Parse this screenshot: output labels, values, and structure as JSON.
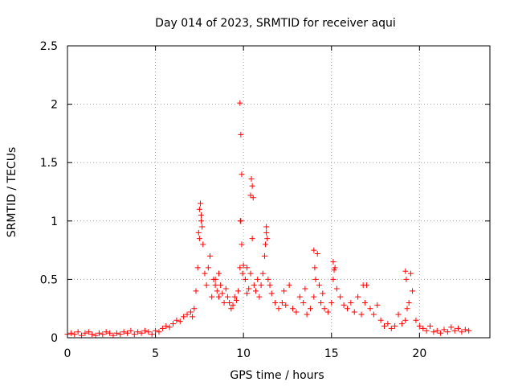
{
  "chart_data": {
    "type": "scatter",
    "title": "Day 014 of 2023, SRMTID for receiver aqui",
    "xlabel": "GPS time / hours",
    "ylabel": "SRMTID / TECUs",
    "xlim": [
      0,
      24
    ],
    "ylim": [
      0,
      2.5
    ],
    "xticks": [
      0,
      5,
      10,
      15,
      20
    ],
    "xtick_labels": [
      "0",
      "5",
      "10",
      "15",
      "20"
    ],
    "yticks": [
      0,
      0.5,
      1,
      1.5,
      2,
      2.5
    ],
    "ytick_labels": [
      "0",
      "0.5",
      "1",
      "1.5",
      "2",
      "2.5"
    ],
    "grid": true,
    "marker": "+",
    "color": "#ff0000",
    "series": [
      {
        "name": "SRMTID",
        "x": [
          0.0,
          0.2,
          0.4,
          0.6,
          0.8,
          1.0,
          1.2,
          1.4,
          1.6,
          1.8,
          2.0,
          2.2,
          2.4,
          2.6,
          2.8,
          3.0,
          3.2,
          3.4,
          3.6,
          3.8,
          4.0,
          4.2,
          4.4,
          4.6,
          4.8,
          5.0,
          5.2,
          5.4,
          5.6,
          5.8,
          6.0,
          6.2,
          6.4,
          6.6,
          6.8,
          7.0,
          7.1,
          7.2,
          7.3,
          7.4,
          7.5,
          7.6,
          7.7,
          7.8,
          7.9,
          8.0,
          8.1,
          8.2,
          8.3,
          8.4,
          8.5,
          8.6,
          8.7,
          8.8,
          8.9,
          9.0,
          9.1,
          9.2,
          9.3,
          9.4,
          9.5,
          9.6,
          9.7,
          9.8,
          9.85,
          9.9,
          9.95,
          10.0,
          10.1,
          10.2,
          10.3,
          10.4,
          10.5,
          10.6,
          10.7,
          10.8,
          10.9,
          11.0,
          11.1,
          11.2,
          11.3,
          11.4,
          11.5,
          11.6,
          11.8,
          12.0,
          12.2,
          12.4,
          12.6,
          12.8,
          13.0,
          13.2,
          13.4,
          13.6,
          13.8,
          14.0,
          14.1,
          14.2,
          14.3,
          14.4,
          14.5,
          14.6,
          14.8,
          15.0,
          15.1,
          15.2,
          15.3,
          15.5,
          15.7,
          15.9,
          16.1,
          16.3,
          16.5,
          16.7,
          16.9,
          17.0,
          17.2,
          17.4,
          17.6,
          17.8,
          18.0,
          18.2,
          18.4,
          18.6,
          18.8,
          19.0,
          19.2,
          19.3,
          19.4,
          19.5,
          19.6,
          19.8,
          20.0,
          20.2,
          20.4,
          20.6,
          20.8,
          21.0,
          21.2,
          21.4,
          21.6,
          21.8,
          22.0,
          22.2,
          22.4,
          22.6,
          22.8,
          7.55,
          7.6,
          7.45,
          7.65,
          7.5,
          9.8,
          9.85,
          9.9,
          9.82,
          10.45,
          10.5,
          10.4,
          10.55,
          11.3,
          11.35,
          11.25,
          14.0,
          14.05,
          15.1,
          15.15,
          19.2,
          19.25,
          16.8,
          8.4,
          8.6,
          10.2,
          12.3,
          13.5
        ],
        "y": [
          0.03,
          0.04,
          0.03,
          0.05,
          0.02,
          0.04,
          0.05,
          0.03,
          0.02,
          0.04,
          0.03,
          0.05,
          0.04,
          0.02,
          0.04,
          0.03,
          0.05,
          0.04,
          0.06,
          0.03,
          0.05,
          0.04,
          0.06,
          0.05,
          0.03,
          0.06,
          0.05,
          0.08,
          0.1,
          0.09,
          0.12,
          0.15,
          0.14,
          0.18,
          0.2,
          0.22,
          0.18,
          0.25,
          0.4,
          0.6,
          0.85,
          1.0,
          0.8,
          0.55,
          0.45,
          0.6,
          0.7,
          0.35,
          0.5,
          0.45,
          0.4,
          0.35,
          0.45,
          0.38,
          0.3,
          0.42,
          0.35,
          0.3,
          0.25,
          0.28,
          0.35,
          0.32,
          0.4,
          0.6,
          1.0,
          0.8,
          0.55,
          0.62,
          0.5,
          0.38,
          0.42,
          0.55,
          0.85,
          0.45,
          0.4,
          0.5,
          0.35,
          0.45,
          0.55,
          0.7,
          0.9,
          0.5,
          0.45,
          0.38,
          0.3,
          0.25,
          0.3,
          0.28,
          0.45,
          0.25,
          0.22,
          0.35,
          0.3,
          0.2,
          0.25,
          0.35,
          0.5,
          0.72,
          0.45,
          0.3,
          0.38,
          0.25,
          0.22,
          0.3,
          0.5,
          0.6,
          0.42,
          0.35,
          0.28,
          0.25,
          0.3,
          0.22,
          0.35,
          0.2,
          0.3,
          0.45,
          0.25,
          0.2,
          0.28,
          0.15,
          0.1,
          0.12,
          0.08,
          0.1,
          0.2,
          0.12,
          0.15,
          0.25,
          0.3,
          0.55,
          0.4,
          0.15,
          0.1,
          0.08,
          0.06,
          0.1,
          0.05,
          0.06,
          0.04,
          0.07,
          0.05,
          0.09,
          0.06,
          0.08,
          0.05,
          0.07,
          0.06,
          1.15,
          1.05,
          0.9,
          0.95,
          1.1,
          2.01,
          1.74,
          1.4,
          1.0,
          1.36,
          1.3,
          1.22,
          1.2,
          0.95,
          0.85,
          0.8,
          0.75,
          0.6,
          0.65,
          0.58,
          0.57,
          0.5,
          0.45,
          0.5,
          0.55,
          0.6,
          0.4,
          0.42
        ]
      }
    ]
  }
}
